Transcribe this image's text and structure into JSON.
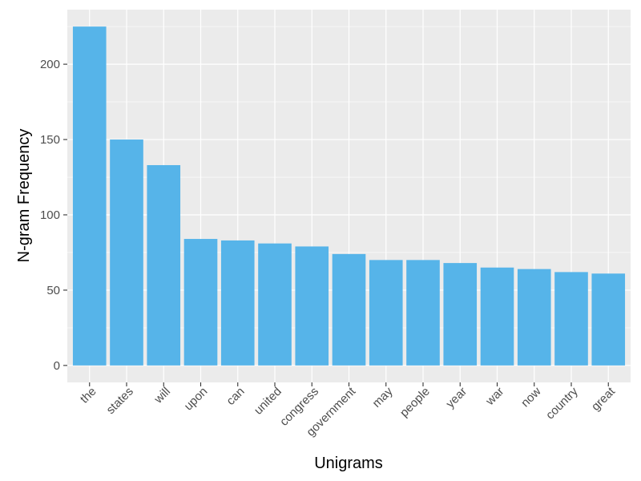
{
  "chart_data": {
    "type": "bar",
    "title": "",
    "xlabel": "Unigrams",
    "ylabel": "N-gram Frequency",
    "categories": [
      "the",
      "states",
      "will",
      "upon",
      "can",
      "united",
      "congress",
      "government",
      "may",
      "people",
      "year",
      "war",
      "now",
      "country",
      "great"
    ],
    "values": [
      225,
      150,
      133,
      84,
      83,
      81,
      79,
      74,
      70,
      70,
      68,
      65,
      64,
      62,
      61
    ],
    "ylim": [
      -11.25,
      236.25
    ],
    "yticks": [
      0,
      50,
      100,
      150,
      200
    ],
    "grid": true,
    "legend": "none",
    "colors": {
      "bar": "#56B4E9",
      "panel": "#EBEBEB",
      "grid": "#FFFFFF",
      "tick_text": "#4D4D4D",
      "tick_mark": "#333333"
    }
  }
}
